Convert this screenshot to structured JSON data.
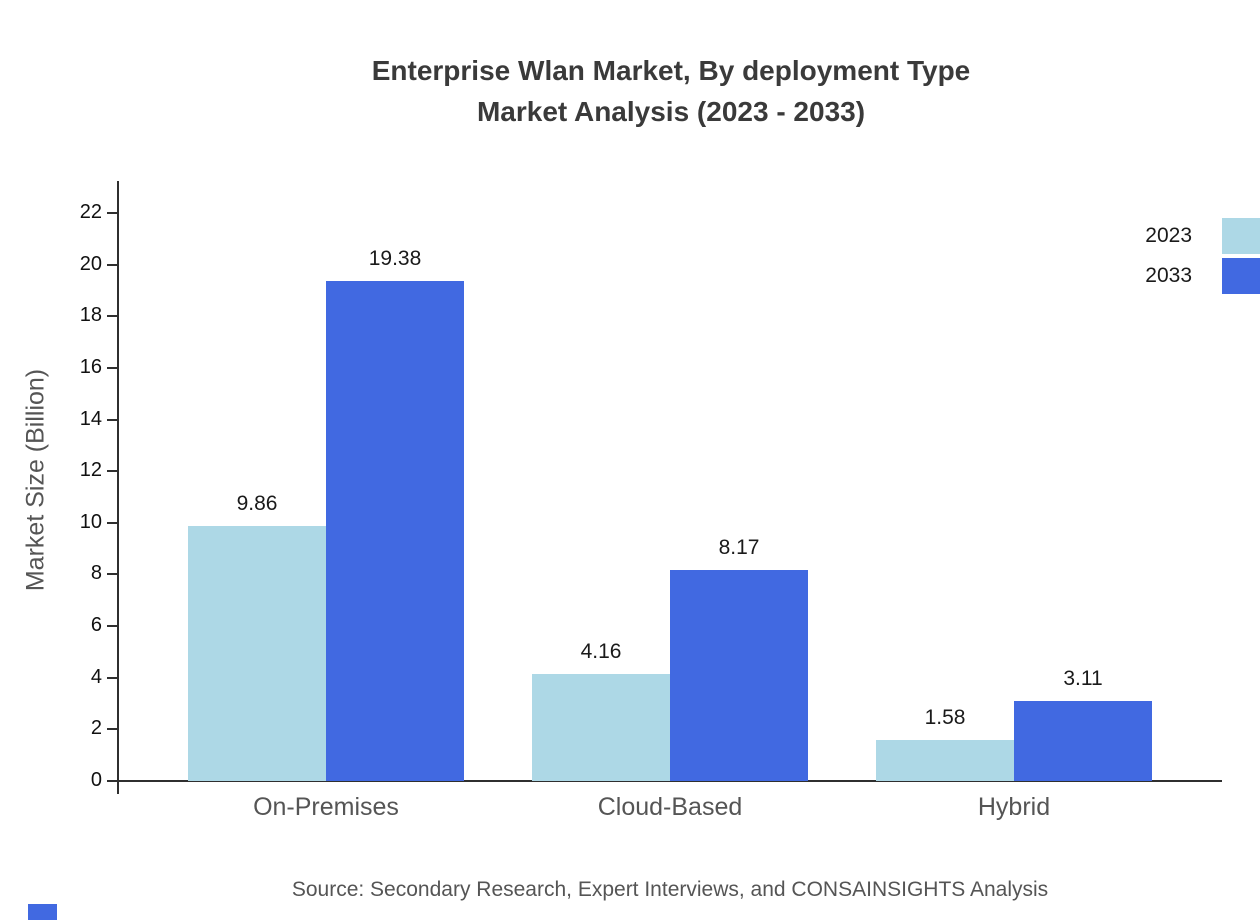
{
  "title": {
    "line1": "Enterprise Wlan Market, By deployment Type",
    "line2": "Market Analysis (2023 - 2033)"
  },
  "chart_data": {
    "type": "bar",
    "title": "Enterprise Wlan Market, By deployment Type Market Analysis (2023 - 2033)",
    "categories": [
      "On-Premises",
      "Cloud-Based",
      "Hybrid"
    ],
    "series": [
      {
        "name": "2023",
        "color": "#add8e6",
        "values": [
          9.86,
          4.16,
          1.58
        ]
      },
      {
        "name": "2033",
        "color": "#4169e1",
        "values": [
          19.38,
          8.17,
          3.11
        ]
      }
    ],
    "xlabel": "",
    "ylabel": "Market Size (Billion)",
    "ylim": [
      0,
      22
    ],
    "ytick_step": 2,
    "yticks": [
      0,
      2,
      4,
      6,
      8,
      10,
      12,
      14,
      16,
      18,
      20,
      22
    ],
    "grid": false,
    "legend_position": "top-right",
    "value_labels": true,
    "value_label_format": "0.00"
  },
  "footer": {
    "source_text": "Source: Secondary Research, Expert Interviews, and CONSAINSIGHTS Analysis"
  },
  "colors": {
    "series_2023": "#add8e6",
    "series_2033": "#4169e1",
    "axis": "#2f2f2f",
    "title": "#3a3a3a",
    "category_label": "#555555",
    "source": "#555555",
    "brand_mark": "#4169e1",
    "background": "#ffffff"
  }
}
